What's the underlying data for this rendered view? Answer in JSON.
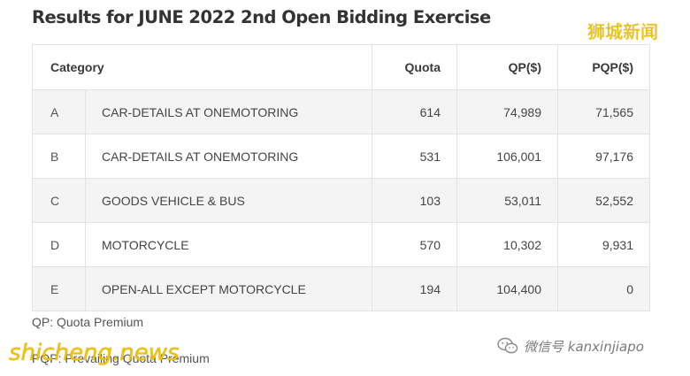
{
  "title": "Results for JUNE 2022 2nd Open Bidding Exercise",
  "watermark_top": "狮城新闻",
  "table": {
    "headers": {
      "category": "Category",
      "quota": "Quota",
      "qp": "QP($)",
      "pqp": "PQP($)"
    },
    "rows": [
      {
        "code": "A",
        "description": "CAR-DETAILS AT ONEMOTORING",
        "quota": "614",
        "qp": "74,989",
        "pqp": "71,565"
      },
      {
        "code": "B",
        "description": "CAR-DETAILS AT ONEMOTORING",
        "quota": "531",
        "qp": "106,001",
        "pqp": "97,176"
      },
      {
        "code": "C",
        "description": "GOODS VEHICLE & BUS",
        "quota": "103",
        "qp": "53,011",
        "pqp": "52,552"
      },
      {
        "code": "D",
        "description": "MOTORCYCLE",
        "quota": "570",
        "qp": "10,302",
        "pqp": "9,931"
      },
      {
        "code": "E",
        "description": "OPEN-ALL EXCEPT MOTORCYCLE",
        "quota": "194",
        "qp": "104,400",
        "pqp": "0"
      }
    ]
  },
  "notes": {
    "qp": "QP: Quota Premium",
    "pqp": "PQP: Prevailing Quota Premium"
  },
  "watermark_bottom": "shicheng.news",
  "watermark_wechat": "微信号 kanxinjiapo",
  "icons": {
    "wechat": "wechat-icon"
  }
}
